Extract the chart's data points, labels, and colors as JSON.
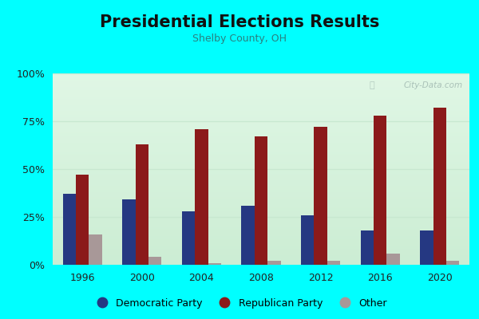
{
  "title": "Presidential Elections Results",
  "subtitle": "Shelby County, OH",
  "years": [
    1996,
    2000,
    2004,
    2008,
    2012,
    2016,
    2020
  ],
  "democratic": [
    37,
    34,
    28,
    31,
    26,
    18,
    18
  ],
  "republican": [
    47,
    63,
    71,
    67,
    72,
    78,
    82
  ],
  "other": [
    16,
    4,
    1,
    2,
    2,
    6,
    2
  ],
  "dem_color": "#253882",
  "rep_color": "#8B1A1A",
  "other_color": "#A89898",
  "bg_outer": "#00FFFF",
  "yticks": [
    0,
    25,
    50,
    75,
    100
  ],
  "ylabels": [
    "0%",
    "25%",
    "50%",
    "75%",
    "100%"
  ],
  "title_fontsize": 15,
  "subtitle_fontsize": 9,
  "bar_width": 0.22,
  "watermark": "City-Data.com",
  "subtitle_color": "#2a8080",
  "grid_color": "#c8e8d0"
}
